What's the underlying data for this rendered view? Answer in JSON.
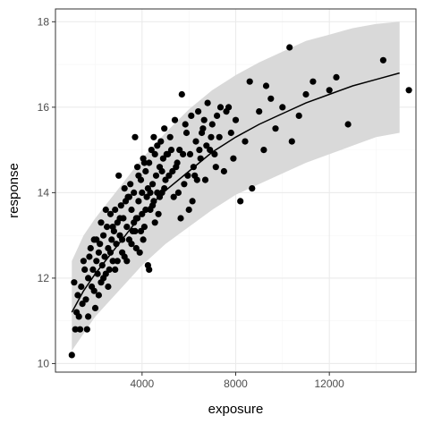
{
  "chart_data": {
    "type": "scatter",
    "title": "",
    "xlabel": "exposure",
    "ylabel": "response",
    "xlim": [
      300,
      15700
    ],
    "ylim": [
      9.8,
      18.3
    ],
    "x_ticks": [
      4000,
      8000,
      12000
    ],
    "y_ticks": [
      10,
      12,
      14,
      16,
      18
    ],
    "grid": true,
    "legend": "none",
    "colors": {
      "points": "#000000",
      "line": "#000000",
      "band": "#d9d9d9",
      "panel_border": "#333333",
      "grid_major": "#ebebeb",
      "grid_minor": "#f5f5f5"
    },
    "fit_line": {
      "x": [
        1000,
        1500,
        2000,
        3000,
        4000,
        5000,
        6000,
        7000,
        8000,
        9000,
        10000,
        11000,
        12000,
        13000,
        14000,
        15000
      ],
      "y": [
        11.2,
        11.7,
        12.1,
        12.8,
        13.5,
        14.05,
        14.5,
        14.95,
        15.3,
        15.6,
        15.85,
        16.1,
        16.3,
        16.5,
        16.65,
        16.8
      ]
    },
    "band": {
      "x": [
        1000,
        1500,
        2000,
        3000,
        4000,
        5000,
        6000,
        7000,
        8000,
        9000,
        10000,
        11000,
        12000,
        13000,
        14000,
        15000
      ],
      "lower": [
        10.3,
        10.7,
        11.1,
        11.7,
        12.3,
        12.8,
        13.2,
        13.6,
        13.95,
        14.2,
        14.45,
        14.7,
        14.9,
        15.1,
        15.3,
        15.4
      ],
      "upper": [
        12.4,
        13.0,
        13.4,
        14.1,
        14.8,
        15.4,
        15.95,
        16.4,
        16.75,
        17.05,
        17.3,
        17.55,
        17.7,
        17.85,
        17.95,
        18.0
      ]
    },
    "points": [
      [
        1000,
        10.2
      ],
      [
        1100,
        11.9
      ],
      [
        1150,
        10.8
      ],
      [
        1200,
        11.2
      ],
      [
        1250,
        11.6
      ],
      [
        1300,
        11.1
      ],
      [
        1350,
        10.8
      ],
      [
        1400,
        11.8
      ],
      [
        1500,
        12.4
      ],
      [
        1550,
        12.2
      ],
      [
        1600,
        11.5
      ],
      [
        1650,
        10.8
      ],
      [
        1700,
        12.0
      ],
      [
        1750,
        12.5
      ],
      [
        1800,
        12.7
      ],
      [
        1850,
        11.8
      ],
      [
        1900,
        12.2
      ],
      [
        1950,
        12.9
      ],
      [
        2000,
        11.3
      ],
      [
        2050,
        12.4
      ],
      [
        2100,
        12.1
      ],
      [
        2150,
        12.6
      ],
      [
        2200,
        12.8
      ],
      [
        2250,
        11.9
      ],
      [
        2300,
        12.3
      ],
      [
        2350,
        13.0
      ],
      [
        2400,
        12.5
      ],
      [
        2450,
        12.1
      ],
      [
        2500,
        13.2
      ],
      [
        2550,
        12.7
      ],
      [
        2600,
        12.2
      ],
      [
        2650,
        13.5
      ],
      [
        2700,
        12.9
      ],
      [
        2750,
        12.4
      ],
      [
        2800,
        13.1
      ],
      [
        2850,
        13.6
      ],
      [
        2900,
        12.8
      ],
      [
        2950,
        13.3
      ],
      [
        3000,
        14.4
      ],
      [
        3050,
        13.0
      ],
      [
        3100,
        13.7
      ],
      [
        3150,
        12.6
      ],
      [
        3200,
        13.4
      ],
      [
        3250,
        14.1
      ],
      [
        3300,
        13.8
      ],
      [
        3350,
        13.2
      ],
      [
        3400,
        13.9
      ],
      [
        3450,
        12.9
      ],
      [
        3500,
        14.2
      ],
      [
        3550,
        13.6
      ],
      [
        3600,
        13.1
      ],
      [
        3650,
        14.0
      ],
      [
        3700,
        15.3
      ],
      [
        3750,
        13.4
      ],
      [
        3800,
        14.6
      ],
      [
        3850,
        13.8
      ],
      [
        3900,
        12.6
      ],
      [
        3950,
        14.3
      ],
      [
        4000,
        13.5
      ],
      [
        4050,
        14.8
      ],
      [
        4100,
        13.2
      ],
      [
        4150,
        14.5
      ],
      [
        4200,
        13.9
      ],
      [
        4250,
        12.3
      ],
      [
        4300,
        14.7
      ],
      [
        4350,
        13.6
      ],
      [
        4400,
        15.0
      ],
      [
        4450,
        14.2
      ],
      [
        4500,
        13.8
      ],
      [
        4550,
        14.9
      ],
      [
        4600,
        14.4
      ],
      [
        4650,
        15.1
      ],
      [
        4700,
        13.5
      ],
      [
        4750,
        14.6
      ],
      [
        4800,
        15.2
      ],
      [
        4850,
        14.0
      ],
      [
        4900,
        14.8
      ],
      [
        4950,
        15.5
      ],
      [
        5000,
        14.3
      ],
      [
        5100,
        14.9
      ],
      [
        5200,
        15.3
      ],
      [
        5300,
        14.5
      ],
      [
        5400,
        15.7
      ],
      [
        5500,
        14.7
      ],
      [
        5600,
        15.0
      ],
      [
        5700,
        16.3
      ],
      [
        5800,
        14.2
      ],
      [
        5900,
        15.4
      ],
      [
        6000,
        13.6
      ],
      [
        6100,
        15.8
      ],
      [
        6200,
        14.6
      ],
      [
        6300,
        15.2
      ],
      [
        6400,
        15.9
      ],
      [
        6500,
        14.8
      ],
      [
        6600,
        15.5
      ],
      [
        6700,
        14.3
      ],
      [
        6800,
        16.1
      ],
      [
        6900,
        15.0
      ],
      [
        7000,
        15.6
      ],
      [
        7100,
        14.9
      ],
      [
        7200,
        15.8
      ],
      [
        7300,
        15.3
      ],
      [
        7500,
        14.5
      ],
      [
        7600,
        15.9
      ],
      [
        7700,
        16.0
      ],
      [
        7800,
        15.4
      ],
      [
        7900,
        14.8
      ],
      [
        8000,
        15.7
      ],
      [
        8200,
        13.8
      ],
      [
        8400,
        15.2
      ],
      [
        8600,
        16.6
      ],
      [
        8700,
        14.1
      ],
      [
        9000,
        15.9
      ],
      [
        9200,
        15.0
      ],
      [
        9300,
        16.5
      ],
      [
        9500,
        16.2
      ],
      [
        9700,
        15.5
      ],
      [
        10000,
        16.0
      ],
      [
        10300,
        17.4
      ],
      [
        10400,
        15.2
      ],
      [
        10700,
        15.8
      ],
      [
        11000,
        16.3
      ],
      [
        11300,
        16.6
      ],
      [
        12000,
        16.4
      ],
      [
        12300,
        16.7
      ],
      [
        12800,
        15.6
      ],
      [
        14300,
        17.1
      ],
      [
        15400,
        16.4
      ],
      [
        1450,
        11.4
      ],
      [
        1700,
        11.1
      ],
      [
        1950,
        11.7
      ],
      [
        2150,
        11.6
      ],
      [
        2350,
        12.0
      ],
      [
        2550,
        11.8
      ],
      [
        2750,
        13.2
      ],
      [
        2950,
        12.4
      ],
      [
        3150,
        12.9
      ],
      [
        3350,
        12.4
      ],
      [
        3550,
        12.8
      ],
      [
        3750,
        12.7
      ],
      [
        3950,
        13.1
      ],
      [
        4150,
        13.6
      ],
      [
        4350,
        14.0
      ],
      [
        4550,
        13.3
      ],
      [
        4750,
        13.9
      ],
      [
        4950,
        14.1
      ],
      [
        5150,
        14.4
      ],
      [
        5350,
        13.9
      ],
      [
        5550,
        14.0
      ],
      [
        5750,
        14.9
      ],
      [
        5950,
        14.4
      ],
      [
        6150,
        13.8
      ],
      [
        6350,
        14.3
      ],
      [
        6550,
        15.4
      ],
      [
        6750,
        15.1
      ],
      [
        6950,
        15.3
      ],
      [
        7150,
        14.6
      ],
      [
        7350,
        16.0
      ],
      [
        2050,
        12.9
      ],
      [
        2250,
        13.3
      ],
      [
        2450,
        13.6
      ],
      [
        2650,
        12.6
      ],
      [
        2850,
        12.2
      ],
      [
        3050,
        13.4
      ],
      [
        3250,
        12.5
      ],
      [
        3450,
        13.9
      ],
      [
        3650,
        13.3
      ],
      [
        3850,
        14.4
      ],
      [
        4050,
        12.9
      ],
      [
        4250,
        14.1
      ],
      [
        4450,
        13.7
      ],
      [
        4650,
        14.0
      ],
      [
        4850,
        14.5
      ],
      [
        5050,
        14.9
      ],
      [
        5250,
        15.0
      ],
      [
        5450,
        14.6
      ],
      [
        5650,
        13.4
      ],
      [
        5850,
        15.6
      ],
      [
        6050,
        14.9
      ],
      [
        6250,
        14.4
      ],
      [
        6450,
        15.0
      ],
      [
        6650,
        15.7
      ],
      [
        3700,
        13.1
      ],
      [
        3800,
        13.4
      ],
      [
        4000,
        14.0
      ],
      [
        4100,
        14.7
      ],
      [
        4300,
        12.2
      ],
      [
        4500,
        15.3
      ]
    ]
  }
}
